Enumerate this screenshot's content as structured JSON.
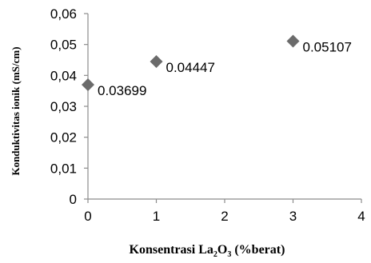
{
  "chart_data": {
    "type": "scatter",
    "xlabel": {
      "main": "Konsentrasi  La",
      "sub1": "2",
      "mid": "O",
      "sub2": "3",
      "rest": "  (%berat)"
    },
    "ylabel": "Konduktivitas ionik (mS/cm)",
    "x": [
      0,
      1,
      3
    ],
    "y": [
      0.03699,
      0.04447,
      0.05107
    ],
    "data_labels": [
      "0.03699",
      "0.04447",
      "0.05107"
    ],
    "xlim": [
      0,
      4
    ],
    "ylim": [
      0,
      0.06
    ],
    "x_ticks": [
      0,
      1,
      2,
      3,
      4
    ],
    "x_tick_labels": [
      "0",
      "1",
      "2",
      "3",
      "4"
    ],
    "y_ticks": [
      0,
      0.01,
      0.02,
      0.03,
      0.04,
      0.05,
      0.06
    ],
    "y_tick_labels": [
      "0",
      "0,01",
      "0,02",
      "0,03",
      "0,04",
      "0,05",
      "0,06"
    ],
    "marker": "diamond",
    "marker_color": "#6b6b6b",
    "grid": false,
    "legend": "none"
  }
}
